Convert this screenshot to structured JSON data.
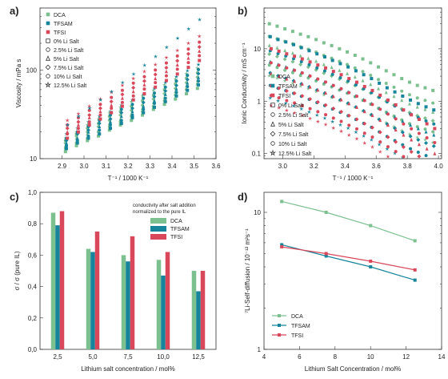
{
  "colors": {
    "dca": "#7cc08f",
    "tfsam": "#16849b",
    "tfsi": "#d9475a",
    "axis": "#333333"
  },
  "chart_data": [
    {
      "panel": "a)",
      "type": "scatter",
      "xlabel": "T⁻¹ / 1000 K⁻¹",
      "ylabel": "Viscosity / mPa s",
      "xlim": [
        2.8,
        3.6
      ],
      "ylim": [
        10,
        500
      ],
      "ylog": true,
      "xticks": [
        "2.9",
        "3.0",
        "3.1",
        "3.2",
        "3.3",
        "3.4",
        "3.5",
        "3.6"
      ],
      "yticks": [
        "10",
        "100"
      ],
      "legend": {
        "series": [
          "DCA",
          "TFSAM",
          "TFSI"
        ],
        "markers": [
          "0% Li Salt",
          "2.5% Li Salt",
          "5% Li Salt",
          "7.5% Li Salt",
          "10% Li Salt",
          "12.5% Li Salt"
        ]
      },
      "x": [
        2.92,
        2.97,
        3.02,
        3.07,
        3.12,
        3.17,
        3.22,
        3.27,
        3.32,
        3.37,
        3.42,
        3.47,
        3.52
      ],
      "series": [
        {
          "name": "DCA",
          "values": [
            [
              12,
              13,
              14,
              15,
              16,
              17
            ],
            [
              14,
              15,
              17,
              18,
              19,
              20
            ],
            [
              16,
              17,
              19,
              20,
              22,
              24
            ],
            [
              18,
              20,
              21,
              23,
              25,
              28
            ],
            [
              21,
              23,
              25,
              27,
              30,
              33
            ],
            [
              24,
              26,
              28,
              31,
              34,
              38
            ],
            [
              27,
              30,
              32,
              35,
              39,
              44
            ],
            [
              31,
              34,
              37,
              40,
              45,
              51
            ],
            [
              36,
              39,
              43,
              47,
              52,
              59
            ],
            [
              41,
              45,
              49,
              54,
              60,
              68
            ],
            [
              47,
              52,
              57,
              62,
              70,
              79
            ],
            [
              54,
              60,
              66,
              72,
              81,
              91
            ],
            [
              62,
              69,
              76,
              83,
              93,
              105
            ]
          ]
        },
        {
          "name": "TFSAM",
          "values": [
            [
              13,
              14,
              15,
              16,
              17,
              19
            ],
            [
              15,
              16,
              17,
              19,
              20,
              22
            ],
            [
              17,
              18,
              20,
              21,
              23,
              26
            ],
            [
              19,
              21,
              23,
              25,
              27,
              30
            ],
            [
              22,
              24,
              26,
              28,
              31,
              34
            ],
            [
              25,
              27,
              30,
              33,
              36,
              40
            ],
            [
              29,
              31,
              34,
              37,
              41,
              46
            ],
            [
              33,
              36,
              39,
              43,
              48,
              53
            ],
            [
              38,
              42,
              45,
              50,
              55,
              62
            ],
            [
              44,
              48,
              53,
              58,
              64,
              72
            ],
            [
              51,
              56,
              61,
              67,
              75,
              84
            ],
            [
              59,
              65,
              71,
              78,
              87,
              98
            ],
            [
              68,
              75,
              82,
              91,
              101,
              115
            ]
          ]
        },
        {
          "name": "TFSI",
          "values": [
            [
              17,
              19,
              20,
              22,
              24,
              27
            ],
            [
              20,
              22,
              24,
              26,
              29,
              32
            ],
            [
              24,
              26,
              29,
              31,
              35,
              39
            ],
            [
              28,
              31,
              34,
              37,
              41,
              47
            ],
            [
              33,
              37,
              40,
              44,
              49,
              56
            ],
            [
              39,
              43,
              48,
              53,
              59,
              67
            ],
            [
              46,
              51,
              57,
              63,
              71,
              80
            ],
            [
              54,
              61,
              68,
              75,
              84,
              96
            ],
            [
              64,
              72,
              80,
              89,
              100,
              115
            ],
            [
              76,
              86,
              96,
              106,
              120,
              138
            ],
            [
              90,
              102,
              114,
              127,
              144,
              166
            ],
            [
              107,
              121,
              136,
              152,
              172,
              200
            ],
            [
              128,
              145,
              163,
              182,
              206,
              240
            ]
          ]
        }
      ],
      "stars": [
        24,
        30,
        37,
        46,
        57,
        72,
        90,
        113,
        142,
        180,
        228,
        290,
        370
      ]
    },
    {
      "panel": "b)",
      "type": "scatter",
      "xlabel": "T⁻¹ / 1000 K⁻¹",
      "ylabel": "Ionic Conductivity / mS cm⁻¹",
      "xlim": [
        2.88,
        4.02
      ],
      "ylim": [
        0.08,
        60
      ],
      "ylog": true,
      "xticks": [
        "3.0",
        "3.2",
        "3.4",
        "3.6",
        "3.8",
        "4.0"
      ],
      "yticks": [
        "0.1",
        "1",
        "10"
      ],
      "legend": {
        "series": [
          "DCA",
          "TFSAM",
          "TFSI"
        ],
        "markers": [
          "0% Li Salt",
          "2.5% Li Salt",
          "5% Li Salt",
          "7.5% Li Salt",
          "10% Li Salt",
          "12.5% Li Salt"
        ]
      },
      "x": [
        2.92,
        2.97,
        3.02,
        3.07,
        3.12,
        3.17,
        3.22,
        3.27,
        3.32,
        3.37,
        3.42,
        3.47,
        3.52,
        3.57,
        3.62,
        3.67,
        3.72,
        3.77,
        3.82,
        3.87,
        3.92,
        3.97
      ],
      "series": [
        {
          "name": "DCA",
          "top": [
            30,
            27,
            24,
            21.5,
            19,
            17,
            15,
            13,
            11.5,
            10,
            8.7,
            7.5,
            6.4,
            5.4,
            4.5,
            3.8,
            3.2,
            2.7,
            2.3,
            2.0,
            1.8,
            1.6
          ],
          "drop": [
            0.55,
            0.62,
            0.7
          ]
        },
        {
          "name": "TFSAM",
          "top": [
            17,
            15,
            13.5,
            12,
            10.5,
            9.2,
            8.0,
            7.0,
            6.0,
            5.2,
            4.5,
            3.8,
            3.2,
            2.7,
            2.2,
            1.8,
            1.5,
            1.25,
            1.05,
            0.9,
            0.78,
            0.68
          ],
          "drop": [
            0.5,
            0.55,
            0.6
          ]
        },
        {
          "name": "TFSI",
          "top": [
            10,
            9,
            8,
            7.2,
            6.4,
            5.6,
            4.9,
            4.3,
            3.7,
            3.2,
            2.7,
            2.3,
            1.9,
            1.6,
            1.3,
            1.05,
            0.85,
            0.68,
            0.55,
            0.45,
            0.37,
            0.3
          ],
          "drop": [
            0.55,
            0.6,
            0.62,
            0.65,
            0.7
          ]
        }
      ]
    },
    {
      "panel": "c)",
      "type": "bar",
      "title": "",
      "annotation": [
        "conductivity after salt addition",
        "normalized to the pure IL"
      ],
      "xlabel": "Lithium salt concentration / mol%",
      "ylabel": "σ / σ (pure IL)",
      "ylim": [
        0,
        1.0
      ],
      "yticks": [
        "0,0",
        "0,2",
        "0,4",
        "0,6",
        "0,8",
        "1,0"
      ],
      "categories": [
        "2,5",
        "5,0",
        "7,5",
        "10,0",
        "12,5"
      ],
      "legend": [
        "DCA",
        "TFSAM",
        "TFSI"
      ],
      "series": [
        {
          "name": "DCA",
          "values": [
            0.87,
            0.64,
            0.6,
            0.57,
            0.5
          ]
        },
        {
          "name": "TFSAM",
          "values": [
            0.79,
            0.62,
            0.56,
            0.47,
            0.37
          ]
        },
        {
          "name": "TFSI",
          "values": [
            0.88,
            0.75,
            0.72,
            0.62,
            0.5
          ]
        }
      ]
    },
    {
      "panel": "d)",
      "type": "line",
      "xlabel": "Lithium Salt Concentration / mol%",
      "ylabel": "⁷Li-Self-diffusion / 10⁻¹² m²s⁻¹",
      "xlim": [
        4,
        14
      ],
      "ylim": [
        1,
        14
      ],
      "ylog": true,
      "xticks": [
        "4",
        "6",
        "8",
        "10",
        "12",
        "14"
      ],
      "yticks": [
        "1",
        "10"
      ],
      "x": [
        5,
        7.5,
        10,
        12.5
      ],
      "series": [
        {
          "name": "DCA",
          "values": [
            12.0,
            10.0,
            8.0,
            6.2
          ]
        },
        {
          "name": "TFSAM",
          "values": [
            5.8,
            4.8,
            4.0,
            3.2
          ]
        },
        {
          "name": "TFSI",
          "values": [
            5.6,
            5.0,
            4.4,
            3.8
          ]
        }
      ]
    }
  ]
}
